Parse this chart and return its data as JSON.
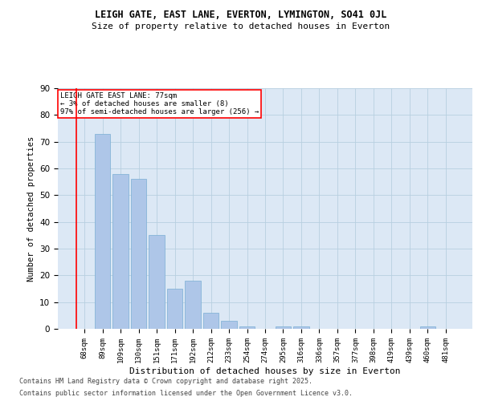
{
  "title1": "LEIGH GATE, EAST LANE, EVERTON, LYMINGTON, SO41 0JL",
  "title2": "Size of property relative to detached houses in Everton",
  "xlabel": "Distribution of detached houses by size in Everton",
  "ylabel": "Number of detached properties",
  "categories": [
    "68sqm",
    "89sqm",
    "109sqm",
    "130sqm",
    "151sqm",
    "171sqm",
    "192sqm",
    "212sqm",
    "233sqm",
    "254sqm",
    "274sqm",
    "295sqm",
    "316sqm",
    "336sqm",
    "357sqm",
    "377sqm",
    "398sqm",
    "419sqm",
    "439sqm",
    "460sqm",
    "481sqm"
  ],
  "values": [
    0,
    73,
    58,
    56,
    35,
    15,
    18,
    6,
    3,
    1,
    0,
    1,
    1,
    0,
    0,
    0,
    0,
    0,
    0,
    1,
    0
  ],
  "bar_color": "#aec6e8",
  "bar_edge_color": "#7aaed4",
  "annotation_box": {
    "text_line1": "LEIGH GATE EAST LANE: 77sqm",
    "text_line2": "← 3% of detached houses are smaller (8)",
    "text_line3": "97% of semi-detached houses are larger (256) →"
  },
  "background_color": "#ffffff",
  "plot_bg_color": "#dce8f5",
  "grid_color": "#b8cfe0",
  "ylim": [
    0,
    90
  ],
  "yticks": [
    0,
    10,
    20,
    30,
    40,
    50,
    60,
    70,
    80,
    90
  ],
  "footnote1": "Contains HM Land Registry data © Crown copyright and database right 2025.",
  "footnote2": "Contains public sector information licensed under the Open Government Licence v3.0."
}
